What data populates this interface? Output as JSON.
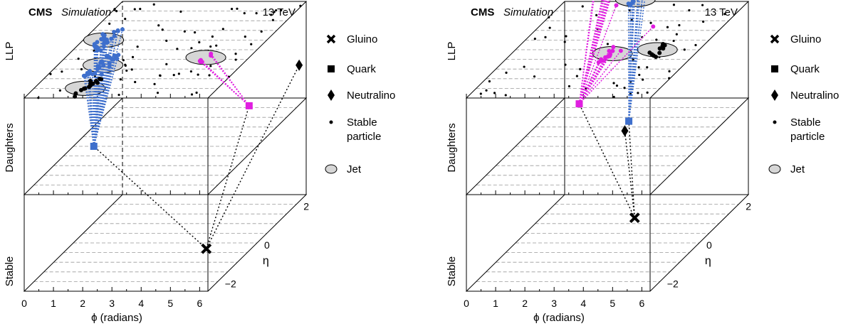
{
  "header": {
    "cms": "CMS",
    "simulation": "Simulation",
    "energy": "13 TeV"
  },
  "layers": [
    "Stable",
    "Daughters",
    "LLP"
  ],
  "axes": {
    "phi_label": "ϕ (radians)",
    "eta_label": "η",
    "phi_ticks": [
      "0",
      "1",
      "2",
      "3",
      "4",
      "5",
      "6"
    ],
    "eta_ticks": [
      "−2",
      "0",
      "2"
    ]
  },
  "legend": [
    {
      "key": "gluino",
      "label": "Gluino",
      "marker": "cross"
    },
    {
      "key": "quark",
      "label": "Quark",
      "marker": "square"
    },
    {
      "key": "neutralino",
      "label": "Neutralino",
      "marker": "diamond"
    },
    {
      "key": "stable",
      "label_line1": "Stable",
      "label_line2": "particle",
      "marker": "dot"
    },
    {
      "key": "jet",
      "label": "Jet",
      "marker": "ellipse-hatched"
    }
  ],
  "colors": {
    "blue": "#3e6fcc",
    "magenta": "#e01ee0",
    "black": "#000000",
    "grid": "#999999",
    "jet_fill": "#d6d6d6"
  },
  "panels": [
    {
      "id": "left",
      "gluino": {
        "phi": 4.75,
        "eta": -0.3
      },
      "quarks": [
        {
          "phi": 0.7,
          "eta": 0.0,
          "color": "blue"
        },
        {
          "phi": 4.6,
          "eta": 2.1,
          "color": "magenta"
        }
      ],
      "neutralinos": [
        {
          "phi": 4.9,
          "eta": 4.2
        }
      ],
      "jets": [
        {
          "phi": 0.7,
          "eta": 0.5,
          "w": 0.35,
          "h": 0.75,
          "color": "blue"
        },
        {
          "phi": 1.55,
          "eta": -0.8,
          "w": 0.35,
          "h": 0.75,
          "color": "blue"
        },
        {
          "phi": 1.75,
          "eta": -2.0,
          "w": 0.35,
          "h": 0.75,
          "color": "black"
        },
        {
          "phi": 3.4,
          "eta": 3.2,
          "w": 0.35,
          "h": 0.75,
          "color": "black"
        },
        {
          "phi": 4.8,
          "eta": -0.4,
          "w": 0.35,
          "h": 0.75,
          "color": "magenta"
        }
      ],
      "clusters": [
        {
          "phi": 0.7,
          "eta": 0.5,
          "n": 28,
          "color": "blue",
          "spread": 0.28,
          "source": 0
        },
        {
          "phi": 1.55,
          "eta": -0.8,
          "n": 28,
          "color": "blue",
          "spread": 0.28,
          "source": 0
        },
        {
          "phi": 1.75,
          "eta": -2.0,
          "n": 14,
          "color": "black",
          "spread": 0.25,
          "source": -1
        },
        {
          "phi": 3.4,
          "eta": 3.2,
          "n": 14,
          "color": "black",
          "spread": 0.25,
          "source": -1
        },
        {
          "phi": 4.8,
          "eta": -0.4,
          "n": 6,
          "color": "magenta",
          "spread": 0.12,
          "source": 1
        }
      ],
      "background_count": 75,
      "dashed_frame": true
    },
    {
      "id": "right",
      "gluino": {
        "phi": 3.2,
        "eta": 1.3
      },
      "quarks": [
        {
          "phi": 0.7,
          "eta": 2.2,
          "color": "magenta"
        },
        {
          "phi": 3.0,
          "eta": 1.3,
          "color": "blue"
        }
      ],
      "neutralinos": [
        {
          "phi": 3.2,
          "eta": 0.8
        }
      ],
      "jets": [
        {
          "phi": 0.75,
          "eta": 3.5,
          "w": 0.35,
          "h": 0.75,
          "color": "magenta"
        },
        {
          "phi": 2.35,
          "eta": 2.6,
          "w": 0.35,
          "h": 0.75,
          "color": "blue"
        },
        {
          "phi": 3.45,
          "eta": -0.2,
          "w": 0.35,
          "h": 0.75,
          "color": "magenta"
        },
        {
          "phi": 4.85,
          "eta": 0.0,
          "w": 0.35,
          "h": 0.75,
          "color": "black"
        }
      ],
      "clusters": [
        {
          "phi": 0.75,
          "eta": 3.5,
          "n": 14,
          "color": "magenta",
          "spread": 0.22,
          "source": 0
        },
        {
          "phi": 2.35,
          "eta": 2.6,
          "n": 14,
          "color": "blue",
          "spread": 0.22,
          "source": 1
        },
        {
          "phi": 3.45,
          "eta": -0.2,
          "n": 12,
          "color": "magenta",
          "spread": 0.25,
          "source": 0
        },
        {
          "phi": 4.85,
          "eta": 0.0,
          "n": 10,
          "color": "black",
          "spread": 0.2,
          "source": -1
        }
      ],
      "extra_links": [
        {
          "phi": 1.9,
          "eta": 2.3,
          "source": 0,
          "color": "magenta"
        },
        {
          "phi": 3.9,
          "eta": 1.2,
          "source": 0,
          "color": "magenta"
        }
      ],
      "background_count": 60,
      "dashed_frame": false
    }
  ]
}
